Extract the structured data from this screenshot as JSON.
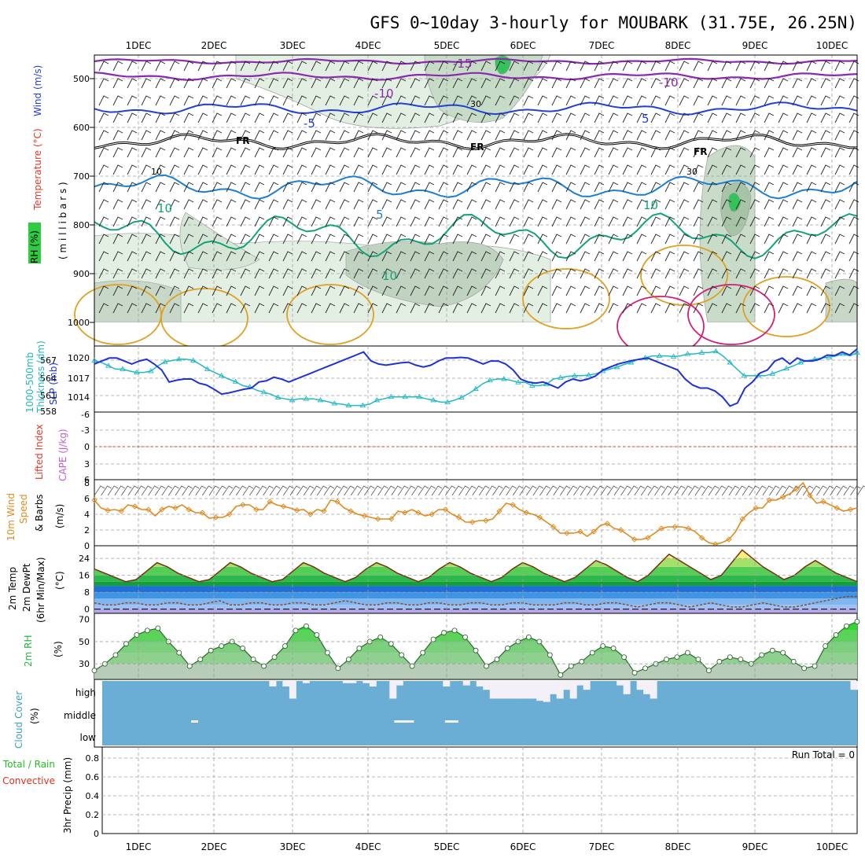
{
  "title": "GFS 0~10day 3-hourly for MOUBARK (31.75E, 26.25N)",
  "dates": [
    "1DEC",
    "2DEC",
    "3DEC",
    "4DEC",
    "5DEC",
    "6DEC",
    "7DEC",
    "8DEC",
    "9DEC",
    "10DEC"
  ],
  "colors": {
    "rh_green": "#2ecc40",
    "temp_red": "#e0392a",
    "temp_blue": "#2340d6",
    "slp_blue": "#1f32d6",
    "thickness_cyan": "#21b9c2",
    "cape_violet": "#c060d0",
    "wind_orange": "#e08a1e",
    "rh2m_green": "#22b83c",
    "cloud_cyan": "#3aa0c8",
    "cloud_fill": "#6aaed6",
    "precip_green": "#22c022",
    "precip_red": "#e03020"
  },
  "panels": {
    "upper_air": {
      "ylabel_parts": [
        {
          "text": "RH (%)",
          "color": "#2ecc40"
        },
        {
          "text": "Temperature",
          "color": "#e0392a"
        },
        {
          "text": "(°C)",
          "color": "#e0392a"
        },
        {
          "text": "Wind (m/s)",
          "color": "#2340d6"
        }
      ],
      "ylabel_unit": "( m i l l i b a r s )",
      "pressure_ticks": [
        "500",
        "600",
        "700",
        "800",
        "900",
        "1000"
      ],
      "contour_labels": {
        "t15": "-15",
        "t10a": "-10",
        "t10b": "-10",
        "t5a": "-5",
        "t5b": "5",
        "fr1": "FR",
        "fr2": "FR",
        "fr3": "FR",
        "p5": "5",
        "p10a": "10",
        "p10b": "10",
        "p10c": "10",
        "rh10": "10",
        "rh30a": "30",
        "rh30b": "30"
      }
    },
    "slp": {
      "ylabel_left": "1000-500mb",
      "ylabel_left2": "Thickness (dm)",
      "ylabel_right": "SLP (mb)",
      "thickness_ticks": [
        "567",
        "564",
        "561",
        "558"
      ],
      "slp_ticks": [
        "1020",
        "1017",
        "1014"
      ]
    },
    "cape": {
      "ylabel_left": "Lifted Index",
      "ylabel_right": "CAPE (J/kg)",
      "ticks": [
        "-6",
        "-3",
        "0",
        "3",
        "6"
      ]
    },
    "wind10": {
      "ylabel1": "10m Wind",
      "ylabel2": "Speed",
      "ylabel3": "& Barbs",
      "ylabel4": "(m/s)",
      "ticks": [
        "8",
        "6",
        "4",
        "2",
        "0"
      ]
    },
    "temp2m": {
      "ylabel1": "2m Temp",
      "ylabel2": "2m DewPt",
      "ylabel3": "(6hr Min/Max)",
      "ylabel4": "(°C)",
      "ticks": [
        "24",
        "16",
        "8",
        "0"
      ]
    },
    "rh2m": {
      "ylabel": "2m RH",
      "unit": "(%)",
      "ticks": [
        "70",
        "50",
        "30"
      ]
    },
    "cloud": {
      "ylabel1": "Cloud Cover",
      "ylabel2": "(%)",
      "levels": [
        "high",
        "middle",
        "low"
      ]
    },
    "precip": {
      "ylabel_left1": "Total / Rain",
      "ylabel_left2": "Convective",
      "ylabel_right": "3hr Precip (mm)",
      "ticks": [
        "0.8",
        "0.6",
        "0.4",
        "0.2",
        "0"
      ],
      "run_total": "Run Total = 0"
    }
  },
  "chart_data": [
    {
      "type": "line",
      "title": "1000-500mb Thickness (dm) / SLP (mb)",
      "series": [
        {
          "name": "SLP (mb)",
          "axis": "right",
          "values": [
            1019,
            1019.5,
            1020,
            1020,
            1019.5,
            1019,
            1019.5,
            1019.8,
            1019,
            1018,
            1016,
            1016.3,
            1016.5,
            1016.5,
            1015.8,
            1015.5,
            1014.8,
            1014,
            1014.2,
            1014.5,
            1014.8,
            1015,
            1016,
            1016.2,
            1016.8,
            1016.5,
            1016,
            1016.5,
            1017,
            1017.5,
            1018,
            1018.5,
            1019,
            1019.5,
            1020,
            1020.5,
            1021,
            1019.5,
            1019,
            1018.8,
            1019,
            1019.2,
            1019.3,
            1018.8,
            1018.5,
            1018.8,
            1019.5,
            1020,
            1020,
            1020.1,
            1020,
            1019.5,
            1019,
            1019.5,
            1019.5,
            1019,
            1018,
            1016.5,
            1016,
            1015.8,
            1016,
            1015.5,
            1015,
            1016,
            1016.5,
            1016.2,
            1016.5,
            1017,
            1018,
            1018.5,
            1019,
            1019.3,
            1019.6,
            1019.8,
            1020,
            1019.5,
            1019,
            1018.5,
            1018,
            1016.5,
            1015.5,
            1015,
            1015,
            1014.5,
            1013.5,
            1012,
            1012.5,
            1015,
            1016,
            1017.5,
            1018,
            1019.5,
            1020,
            1019,
            1020,
            1019.5,
            1019.5,
            1019.8,
            1020.5,
            1020.4,
            1021,
            1020.5,
            1021.5
          ]
        },
        {
          "name": "1000-500mb Thickness (dm)",
          "axis": "left",
          "values": [
            565.8,
            565.5,
            565,
            564.5,
            564.5,
            564.2,
            564,
            564,
            564.2,
            565,
            565.6,
            565.8,
            566,
            566,
            565.8,
            565.2,
            564.5,
            564,
            563.5,
            563,
            562.6,
            562,
            561.8,
            561.3,
            561,
            560.7,
            560.2,
            560,
            559.8,
            560,
            560,
            560,
            559.8,
            559.6,
            559.3,
            559.2,
            559,
            559,
            559,
            559.2,
            559.8,
            560,
            560.3,
            560.3,
            560.3,
            560.3,
            560.3,
            560,
            559.8,
            559.5,
            559.5,
            559.8,
            560.2,
            560.8,
            561.5,
            562.3,
            562.8,
            563,
            563,
            562.8,
            562.5,
            562.5,
            562,
            562,
            562.2,
            563,
            563.2,
            563.4,
            563.5,
            563.5,
            563.6,
            563.8,
            564.2,
            564.5,
            564.8,
            565.2,
            565.5,
            566,
            566.2,
            566.5,
            566.5,
            566.5,
            566.4,
            566.5,
            566.8,
            566.8,
            567,
            567,
            567.2,
            566.5,
            565.5,
            564.5,
            563.5,
            563.5,
            563.5,
            563.5,
            563.8,
            564.2,
            564.6,
            565,
            565.5,
            565.8,
            566,
            566.2,
            566.3,
            566.5,
            566.8,
            566.5,
            567
          ]
        }
      ],
      "ylim_left": [
        558,
        568
      ],
      "ylim_right": [
        1011,
        1022
      ]
    },
    {
      "type": "line",
      "title": "10m Wind Speed & Barbs (m/s)",
      "series": [
        {
          "name": "10m Wind Speed",
          "values": [
            5.8,
            4.8,
            4.5,
            4.6,
            4.4,
            5.2,
            5.0,
            4.6,
            4.6,
            3.8,
            4.6,
            5.0,
            4.8,
            5.2,
            4.6,
            4.2,
            4.2,
            3.5,
            3.6,
            3.6,
            4.0,
            5.0,
            5.2,
            5.2,
            4.6,
            4.6,
            5.6,
            5.2,
            5.0,
            4.8,
            4.5,
            4.6,
            4.0,
            4.6,
            4.4,
            5.8,
            5.6,
            4.8,
            4.4,
            4.0,
            3.8,
            3.6,
            3.4,
            3.4,
            3.4,
            4.4,
            4.2,
            4.6,
            4.2,
            3.8,
            4.0,
            4.6,
            4.6,
            4.0,
            3.6,
            3.0,
            3.0,
            3.2,
            3.2,
            3.4,
            4.4,
            5.4,
            5.2,
            4.6,
            4.2,
            4.0,
            3.6,
            3.0,
            2.4,
            1.6,
            1.6,
            1.6,
            1.8,
            1.2,
            1.8,
            2.6,
            2.8,
            2.2,
            2.0,
            1.4,
            0.8,
            0.8,
            1.0,
            1.6,
            2.2,
            2.4,
            2.4,
            2.4,
            2.2,
            1.8,
            1.0,
            0.4,
            0.2,
            0.4,
            0.8,
            1.8,
            3.4,
            4.2,
            4.8,
            4.8,
            5.8,
            5.8,
            6.2,
            6.6,
            7.2,
            8.0,
            6.4,
            5.4,
            5.6,
            5.2,
            4.8,
            4.4,
            4.6,
            4.8
          ]
        }
      ],
      "ylim": [
        0,
        8
      ]
    },
    {
      "type": "area",
      "title": "2m Temp / 2m DewPt (°C)",
      "series": [
        {
          "name": "2m Temp",
          "values": [
            19,
            17,
            15,
            13,
            14,
            18,
            22,
            20,
            17,
            15,
            13,
            14,
            18,
            22,
            20,
            17,
            15,
            13,
            14,
            18,
            22,
            20,
            17,
            15,
            13,
            15,
            19,
            22,
            20,
            17,
            15,
            13,
            15,
            19,
            22,
            20,
            17,
            15,
            13,
            15,
            19,
            22,
            20,
            17,
            15,
            13,
            15,
            19,
            23,
            21,
            18,
            15,
            13,
            16,
            21,
            26,
            23,
            20,
            17,
            14,
            16,
            22,
            28,
            24,
            20,
            17,
            14,
            16,
            20,
            23,
            20,
            17,
            15,
            13
          ]
        },
        {
          "name": "2m DewPt",
          "values": [
            3,
            2,
            2,
            3,
            3,
            2,
            2,
            3,
            3,
            2,
            2,
            3,
            4,
            2,
            2,
            3,
            3,
            2,
            2,
            3,
            3,
            2,
            2,
            3,
            4,
            3,
            2,
            2,
            3,
            3,
            2,
            2,
            3,
            3,
            2,
            2,
            3,
            3,
            2,
            2,
            3,
            3,
            2,
            2,
            2,
            3,
            3,
            2,
            2,
            3,
            3,
            2,
            1,
            2,
            3,
            3,
            2,
            1,
            2,
            3,
            2,
            1,
            1,
            2,
            3,
            2,
            1,
            1,
            2,
            3,
            4,
            5,
            6,
            6
          ]
        }
      ],
      "ylim": [
        -2,
        30
      ]
    },
    {
      "type": "area",
      "title": "2m RH (%)",
      "series": [
        {
          "name": "2m RH",
          "values": [
            24,
            30,
            38,
            48,
            56,
            60,
            62,
            50,
            40,
            28,
            34,
            42,
            46,
            50,
            44,
            34,
            28,
            36,
            46,
            60,
            64,
            56,
            40,
            26,
            34,
            44,
            50,
            54,
            48,
            38,
            28,
            40,
            52,
            58,
            60,
            54,
            42,
            28,
            34,
            44,
            50,
            54,
            50,
            38,
            20,
            28,
            32,
            40,
            46,
            44,
            36,
            22,
            26,
            30,
            34,
            36,
            40,
            34,
            24,
            32,
            36,
            34,
            30,
            38,
            42,
            40,
            32,
            26,
            28,
            46,
            56,
            64,
            68
          ]
        }
      ],
      "ylim": [
        16,
        74
      ]
    },
    {
      "type": "bar",
      "title": "Cloud Cover (%)",
      "series": [
        {
          "name": "high",
          "values": [
            0,
            0,
            0,
            0,
            0,
            0,
            0,
            0,
            0,
            0,
            0,
            0,
            0,
            0,
            0,
            0,
            0,
            0,
            0,
            0,
            0,
            0,
            0,
            0,
            0,
            25,
            0,
            25,
            80,
            0,
            10,
            0,
            0,
            0,
            0,
            0,
            10,
            10,
            0,
            10,
            25,
            0,
            0,
            80,
            20,
            0,
            0,
            0,
            0,
            0,
            0,
            25,
            0,
            0,
            20,
            0,
            25,
            40,
            80,
            80,
            80,
            80,
            80,
            80,
            80,
            90,
            95,
            60,
            80,
            40,
            80,
            20,
            40,
            0,
            0,
            0,
            0,
            20,
            60,
            0,
            40,
            60,
            80,
            0,
            0,
            0,
            0,
            0,
            0,
            0,
            0,
            0,
            0,
            0,
            0,
            0,
            0,
            0,
            0,
            0,
            0,
            0,
            0,
            0,
            0,
            0,
            0,
            0,
            0,
            0,
            0,
            0,
            40
          ]
        },
        {
          "name": "middle",
          "values": [
            0,
            0,
            0,
            0,
            0,
            0,
            0,
            0,
            0,
            0,
            0,
            0,
            0,
            0,
            10,
            0,
            0,
            0,
            0,
            0,
            0,
            0,
            0,
            0,
            0,
            0,
            0,
            0,
            0,
            0,
            0,
            0,
            0,
            0,
            0,
            0,
            0,
            0,
            0,
            0,
            0,
            0,
            0,
            0,
            0,
            0,
            10,
            10,
            10,
            0,
            0,
            0,
            0,
            0,
            10,
            10,
            0,
            0,
            0,
            0,
            0,
            0,
            0,
            0,
            0,
            0,
            0,
            0,
            0,
            0,
            0,
            0,
            0,
            0,
            0,
            0,
            0,
            0,
            0,
            0,
            0,
            0,
            0,
            0,
            0,
            0,
            0,
            0,
            0,
            0,
            0,
            0,
            0,
            0,
            0,
            0,
            0,
            0,
            0,
            0,
            0,
            0,
            0,
            0,
            0,
            0,
            0,
            0,
            0,
            0,
            0,
            0,
            0
          ]
        },
        {
          "name": "low",
          "values": []
        }
      ],
      "ylim": [
        0,
        100
      ]
    },
    {
      "type": "line",
      "title": "3hr Precip (mm)",
      "series": [
        {
          "name": "Total / Rain",
          "values": []
        },
        {
          "name": "Convective",
          "values": []
        }
      ],
      "ylim": [
        0,
        0.9
      ]
    }
  ]
}
